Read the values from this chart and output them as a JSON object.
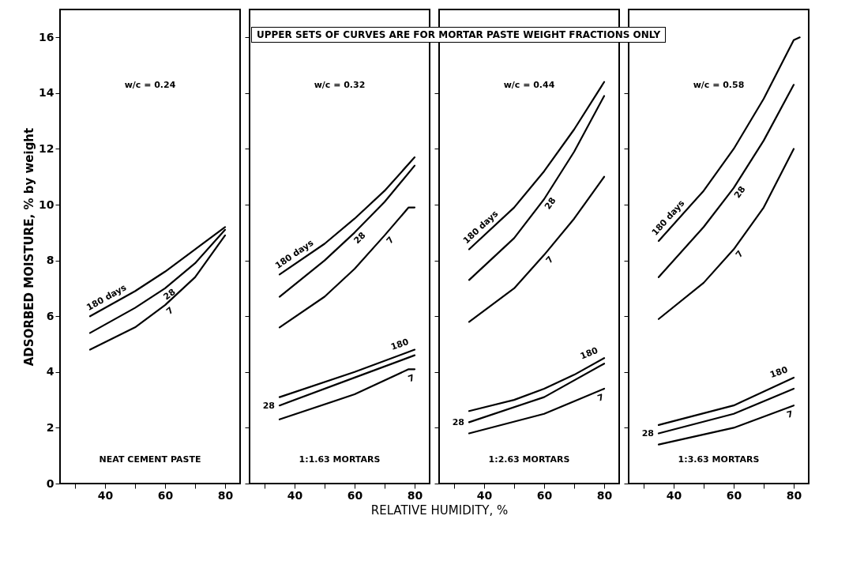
{
  "chart_data": [
    {
      "type": "line",
      "ylabel": "ADSORBED MOISTURE, % by weight",
      "xlim": [
        25,
        85
      ],
      "ylim": [
        0,
        17
      ],
      "xticks": [
        {
          "value": 30,
          "label": null
        },
        40,
        {
          "value": 50,
          "label": null
        },
        60,
        {
          "value": 70,
          "label": null
        },
        80
      ],
      "yticks": [
        0,
        2,
        4,
        6,
        8,
        10,
        12,
        14,
        16
      ],
      "grid": false,
      "marker": "none",
      "line_style": "solid",
      "annotations": [
        "w/c = 0.24",
        "NEAT CEMENT PASTE"
      ],
      "series": [
        {
          "name": "180 days",
          "color": "#000000",
          "x": [
            35,
            50,
            60,
            70,
            80
          ],
          "values": [
            6.0,
            6.9,
            7.6,
            8.4,
            9.2
          ]
        },
        {
          "name": "28",
          "color": "#000000",
          "x": [
            35,
            50,
            60,
            70,
            80
          ],
          "values": [
            5.4,
            6.3,
            7.0,
            7.9,
            9.1
          ]
        },
        {
          "name": "7",
          "color": "#000000",
          "x": [
            35,
            50,
            60,
            70,
            80
          ],
          "values": [
            4.8,
            5.6,
            6.4,
            7.4,
            8.9
          ]
        }
      ]
    },
    {
      "type": "line",
      "xlabel": "RELATIVE HUMIDITY, %",
      "xlim": [
        25,
        85
      ],
      "ylim": [
        0,
        17
      ],
      "xticks": [
        {
          "value": 30,
          "label": null
        },
        40,
        {
          "value": 50,
          "label": null
        },
        60,
        {
          "value": 70,
          "label": null
        },
        80
      ],
      "yticks": [
        0,
        2,
        4,
        6,
        8,
        10,
        12,
        14,
        16
      ],
      "tick_labels": "x",
      "grid": false,
      "marker": "none",
      "line_style": "solid",
      "annotations": [
        "w/c = 0.32",
        "1:1.63 MORTARS",
        "UPPER SETS OF CURVES ARE FOR MORTAR PASTE WEIGHT FRACTIONS ONLY"
      ],
      "series": [
        {
          "name": "180 days",
          "color": "#000000",
          "x": [
            35,
            50,
            60,
            70,
            80
          ],
          "values": [
            7.5,
            8.6,
            9.5,
            10.5,
            11.7
          ]
        },
        {
          "name": "28",
          "color": "#000000",
          "x": [
            35,
            50,
            60,
            70,
            80
          ],
          "values": [
            6.7,
            8.0,
            9.0,
            10.1,
            11.4
          ]
        },
        {
          "name": "7",
          "color": "#000000",
          "x": [
            35,
            50,
            60,
            70,
            78,
            80
          ],
          "values": [
            5.6,
            6.7,
            7.7,
            8.9,
            9.9,
            9.9
          ]
        },
        {
          "name": "180",
          "color": "#000000",
          "x": [
            35,
            60,
            80
          ],
          "values": [
            3.1,
            4.0,
            4.8
          ]
        },
        {
          "name": "28",
          "color": "#000000",
          "x": [
            35,
            60,
            80
          ],
          "values": [
            2.8,
            3.8,
            4.6
          ]
        },
        {
          "name": "7",
          "color": "#000000",
          "x": [
            35,
            60,
            78,
            80
          ],
          "values": [
            2.3,
            3.2,
            4.1,
            4.1
          ]
        }
      ]
    },
    {
      "type": "line",
      "xlim": [
        25,
        85
      ],
      "ylim": [
        0,
        17
      ],
      "xticks": [
        {
          "value": 30,
          "label": null
        },
        40,
        {
          "value": 50,
          "label": null
        },
        60,
        {
          "value": 70,
          "label": null
        },
        80
      ],
      "yticks": [
        0,
        2,
        4,
        6,
        8,
        10,
        12,
        14,
        16
      ],
      "tick_labels": "x",
      "grid": false,
      "marker": "none",
      "line_style": "solid",
      "annotations": [
        "w/c = 0.44",
        "1:2.63 MORTARS"
      ],
      "series": [
        {
          "name": "180 days",
          "color": "#000000",
          "x": [
            35,
            50,
            60,
            70,
            80
          ],
          "values": [
            8.4,
            9.9,
            11.2,
            12.7,
            14.4
          ]
        },
        {
          "name": "28",
          "color": "#000000",
          "x": [
            35,
            50,
            60,
            70,
            80
          ],
          "values": [
            7.3,
            8.8,
            10.2,
            11.9,
            13.9
          ]
        },
        {
          "name": "7",
          "color": "#000000",
          "x": [
            35,
            50,
            60,
            70,
            80
          ],
          "values": [
            5.8,
            7.0,
            8.2,
            9.5,
            11.0
          ]
        },
        {
          "name": "180",
          "color": "#000000",
          "x": [
            35,
            50,
            60,
            70,
            80
          ],
          "values": [
            2.6,
            3.0,
            3.4,
            3.9,
            4.5
          ]
        },
        {
          "name": "28",
          "color": "#000000",
          "x": [
            35,
            60,
            80
          ],
          "values": [
            2.2,
            3.1,
            4.3
          ]
        },
        {
          "name": "7",
          "color": "#000000",
          "x": [
            35,
            60,
            80
          ],
          "values": [
            1.8,
            2.5,
            3.4
          ]
        }
      ]
    },
    {
      "type": "line",
      "xlim": [
        25,
        85
      ],
      "ylim": [
        0,
        17
      ],
      "xticks": [
        {
          "value": 30,
          "label": null
        },
        40,
        {
          "value": 50,
          "label": null
        },
        60,
        {
          "value": 70,
          "label": null
        },
        80
      ],
      "yticks": [
        0,
        2,
        4,
        6,
        8,
        10,
        12,
        14,
        16
      ],
      "tick_labels": "x",
      "grid": false,
      "marker": "none",
      "line_style": "solid",
      "annotations": [
        "w/c = 0.58",
        "1:3.63 MORTARS"
      ],
      "series": [
        {
          "name": "180 days",
          "color": "#000000",
          "x": [
            35,
            50,
            60,
            70,
            80,
            82
          ],
          "values": [
            8.7,
            10.5,
            12.0,
            13.8,
            15.9,
            16.0
          ]
        },
        {
          "name": "28",
          "color": "#000000",
          "x": [
            35,
            50,
            60,
            70,
            80
          ],
          "values": [
            7.4,
            9.2,
            10.6,
            12.3,
            14.3
          ]
        },
        {
          "name": "7",
          "color": "#000000",
          "x": [
            35,
            50,
            60,
            70,
            80
          ],
          "values": [
            5.9,
            7.2,
            8.4,
            9.9,
            12.0
          ]
        },
        {
          "name": "180",
          "color": "#000000",
          "x": [
            35,
            60,
            80
          ],
          "values": [
            2.1,
            2.8,
            3.8
          ]
        },
        {
          "name": "28",
          "color": "#000000",
          "x": [
            35,
            60,
            80
          ],
          "values": [
            1.8,
            2.5,
            3.4
          ]
        },
        {
          "name": "7",
          "color": "#000000",
          "x": [
            35,
            60,
            80
          ],
          "values": [
            1.4,
            2.0,
            2.8
          ]
        }
      ]
    }
  ]
}
